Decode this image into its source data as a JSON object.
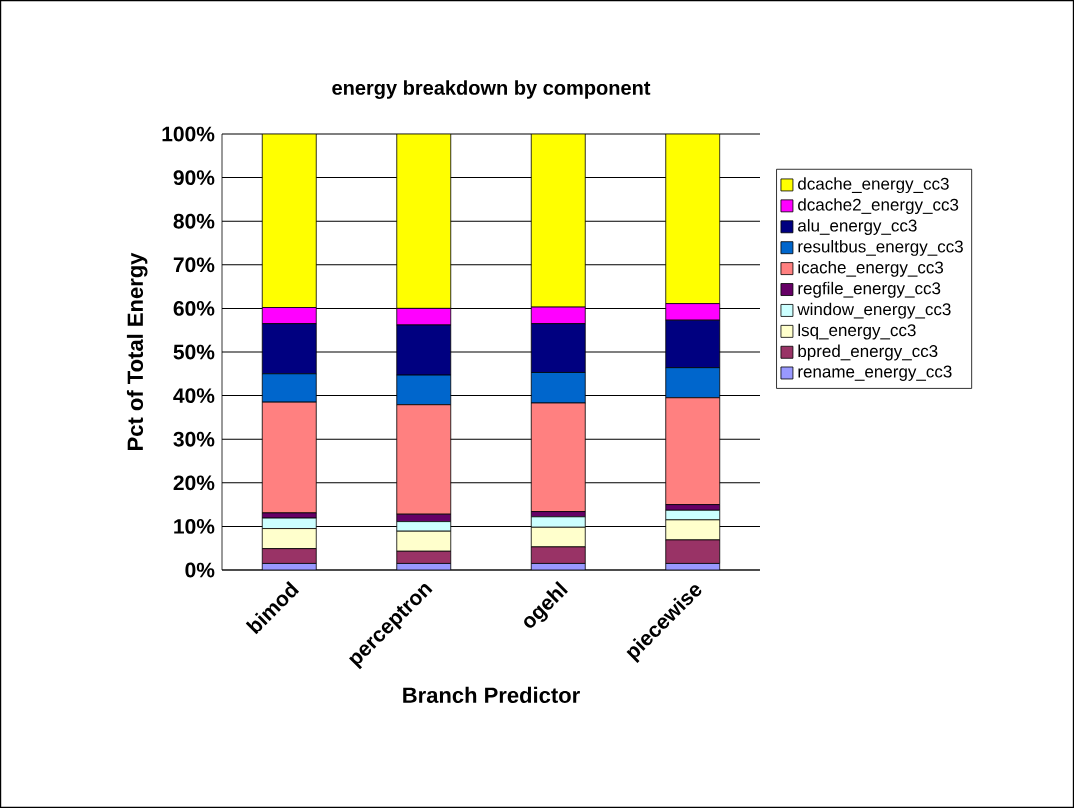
{
  "chart_data": {
    "type": "bar",
    "stacked": true,
    "title": "energy breakdown by component",
    "xlabel": "Branch Predictor",
    "ylabel": "Pct of Total Energy",
    "categories": [
      "bimod",
      "perceptron",
      "ogehl",
      "piecewise"
    ],
    "series": [
      {
        "name": "rename_energy_cc3",
        "color": "#9999ff",
        "values": [
          1.5,
          1.5,
          1.5,
          1.5
        ]
      },
      {
        "name": "bpred_energy_cc3",
        "color": "#993366",
        "values": [
          3.4,
          2.8,
          3.8,
          5.4
        ]
      },
      {
        "name": "lsq_energy_cc3",
        "color": "#ffffcc",
        "values": [
          4.6,
          4.6,
          4.5,
          4.6
        ]
      },
      {
        "name": "window_energy_cc3",
        "color": "#ccffff",
        "values": [
          2.4,
          2.2,
          2.4,
          2.2
        ]
      },
      {
        "name": "regfile_energy_cc3",
        "color": "#660066",
        "values": [
          1.2,
          1.7,
          1.2,
          1.3
        ]
      },
      {
        "name": "icache_energy_cc3",
        "color": "#ff8080",
        "values": [
          25.4,
          25.1,
          24.9,
          24.5
        ]
      },
      {
        "name": "resultbus_energy_cc3",
        "color": "#0066cc",
        "values": [
          6.5,
          6.8,
          7.0,
          6.9
        ]
      },
      {
        "name": "alu_energy_cc3",
        "color": "#000080",
        "values": [
          11.5,
          11.5,
          11.2,
          10.9
        ]
      },
      {
        "name": "dcache2_energy_cc3",
        "color": "#ff00ff",
        "values": [
          3.7,
          3.8,
          3.8,
          3.8
        ]
      },
      {
        "name": "dcache_energy_cc3",
        "color": "#ffff00",
        "values": [
          39.8,
          40.0,
          39.7,
          38.9
        ]
      }
    ],
    "ylim": [
      0,
      100
    ],
    "yticks": [
      {
        "value": 0,
        "label": "0%"
      },
      {
        "value": 10,
        "label": "10%"
      },
      {
        "value": 20,
        "label": "20%"
      },
      {
        "value": 30,
        "label": "30%"
      },
      {
        "value": 40,
        "label": "40%"
      },
      {
        "value": 50,
        "label": "50%"
      },
      {
        "value": 60,
        "label": "60%"
      },
      {
        "value": 70,
        "label": "70%"
      },
      {
        "value": 80,
        "label": "80%"
      },
      {
        "value": 90,
        "label": "90%"
      },
      {
        "value": 100,
        "label": "100%"
      }
    ],
    "grid": "y",
    "legend": "right"
  }
}
